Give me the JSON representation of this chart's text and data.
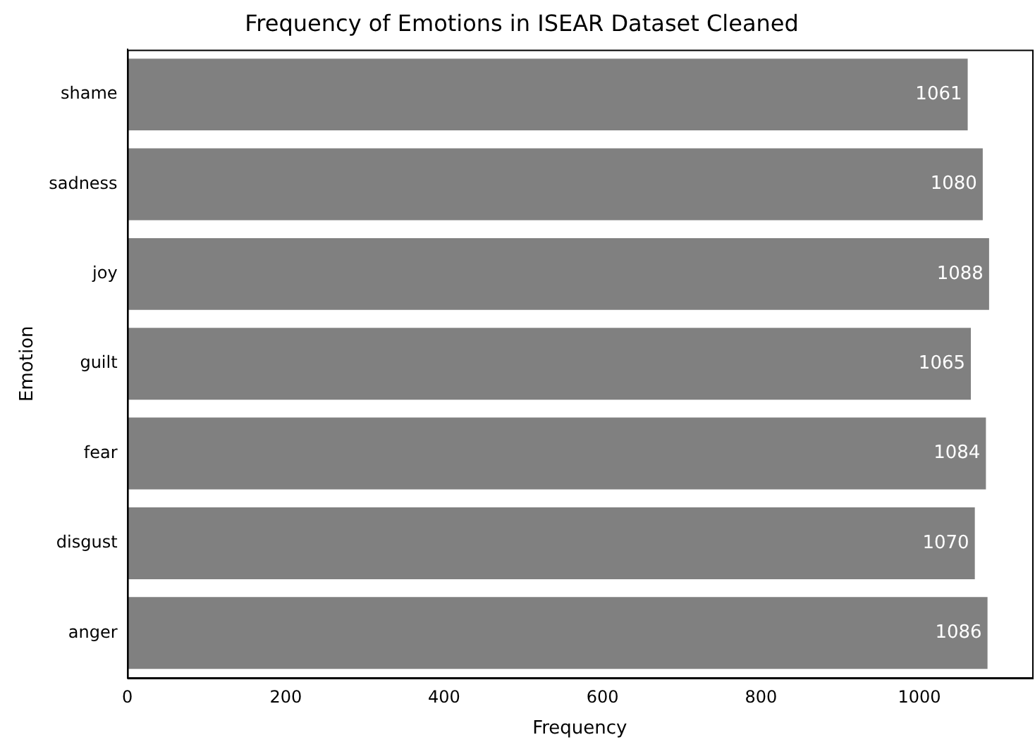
{
  "chart_data": {
    "type": "bar",
    "orientation": "horizontal",
    "title": "Frequency of Emotions in ISEAR Dataset Cleaned",
    "xlabel": "Frequency",
    "ylabel": "Emotion",
    "categories": [
      "shame",
      "sadness",
      "joy",
      "guilt",
      "fear",
      "disgust",
      "anger"
    ],
    "values": [
      1061,
      1080,
      1088,
      1065,
      1084,
      1070,
      1086
    ],
    "color": "#808080",
    "xlim": [
      0,
      1142.4
    ],
    "xticks": [
      0,
      200,
      400,
      600,
      800,
      1000
    ],
    "data_labels": true,
    "grid": false,
    "legend": false
  }
}
